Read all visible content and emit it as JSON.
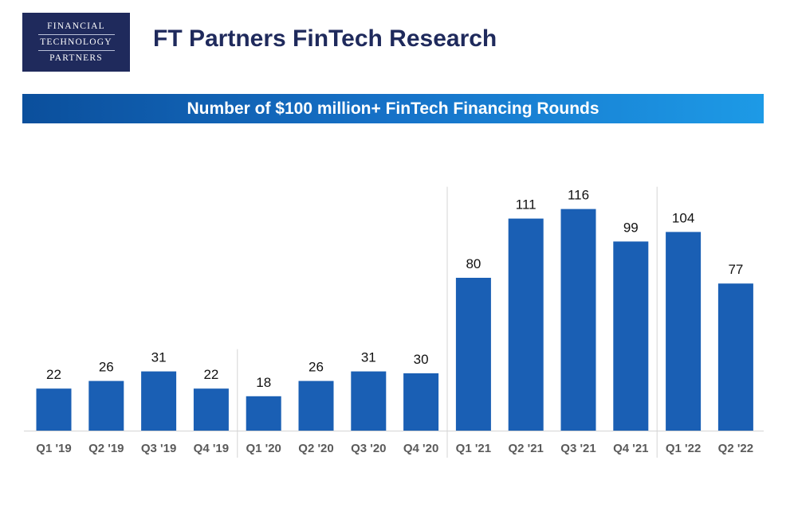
{
  "logo": {
    "line1": "FINANCIAL",
    "line2": "TECHNOLOGY",
    "line3": "PARTNERS"
  },
  "page_title": "FT Partners FinTech Research",
  "colors": {
    "navy": "#1f2a5c",
    "bar": "#1a5fb4",
    "banner_start": "#0b4f9c",
    "banner_end": "#1d9ae6"
  },
  "chart_data": {
    "type": "bar",
    "title": "Number of $100 million+ FinTech Financing Rounds",
    "xlabel": "",
    "ylabel": "",
    "categories": [
      "Q1 '19",
      "Q2 '19",
      "Q3 '19",
      "Q4 '19",
      "Q1 '20",
      "Q2 '20",
      "Q3 '20",
      "Q4 '20",
      "Q1 '21",
      "Q2 '21",
      "Q3 '21",
      "Q4 '21",
      "Q1 '22",
      "Q2 '22"
    ],
    "values": [
      22,
      26,
      31,
      22,
      18,
      26,
      31,
      30,
      80,
      111,
      116,
      99,
      104,
      77
    ],
    "ylim": [
      0,
      130
    ],
    "grid": false,
    "legend": "none",
    "data_labels": true,
    "year_groups": [
      {
        "start": 0,
        "end": 3
      },
      {
        "start": 4,
        "end": 7
      },
      {
        "start": 8,
        "end": 11
      },
      {
        "start": 12,
        "end": 13
      }
    ]
  }
}
